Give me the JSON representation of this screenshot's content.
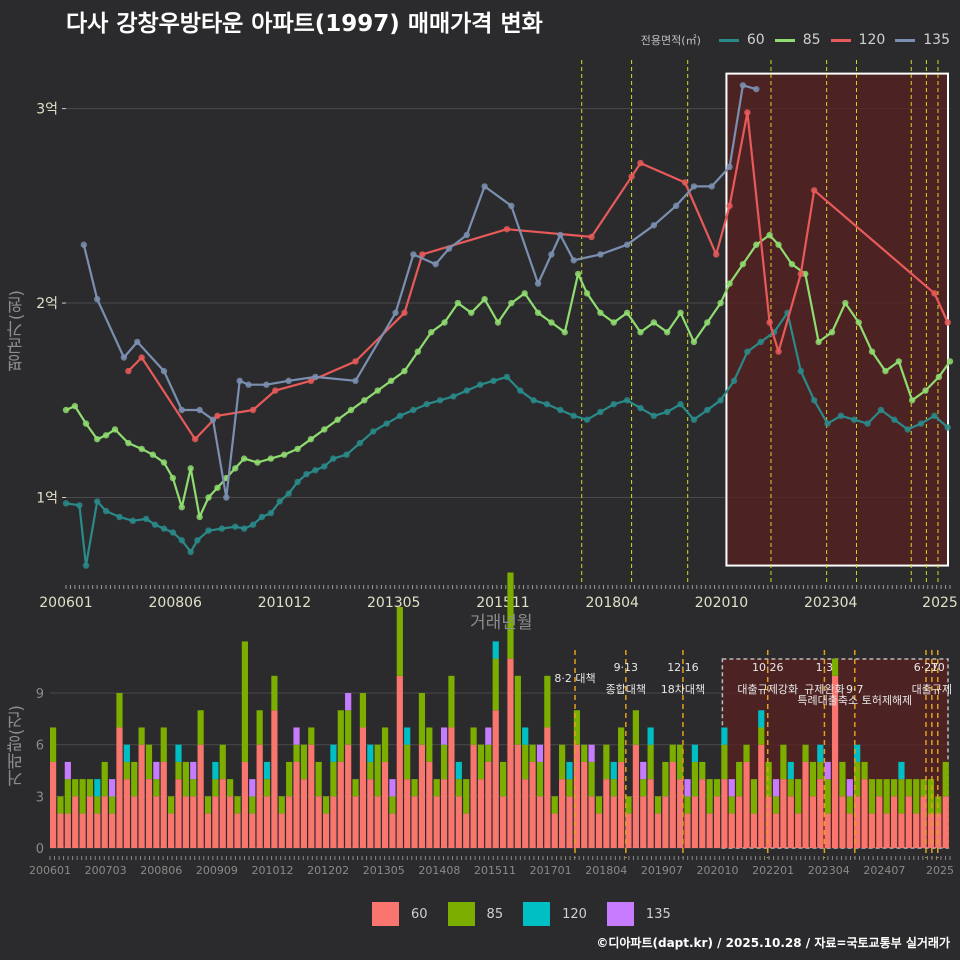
{
  "title": "다사 강창우방타운 아파트(1997) 매매가격 변화",
  "legend_title": "전용면적(㎡)",
  "footer": "©디아파트(dapt.kr) / 2025.10.28 / 자료=국토교통부 실거래가",
  "colors": {
    "s60": "#2a8a8a",
    "s85": "#8fdc70",
    "s120": "#e85a5a",
    "s135": "#7b8fb0",
    "b60": "#f8766d",
    "b85": "#7cae00",
    "b120": "#00bfc4",
    "b135": "#c77cff",
    "policy_line": "#d8d820",
    "highlight_fill": "#5a2020",
    "gridline": "#4a4a4a"
  },
  "chart_data": [
    {
      "type": "line",
      "title": "다사 강창우방타운 아파트(1997) 매매가격 변화",
      "xlabel": "거래년월",
      "ylabel": "평균가(원)",
      "x_tick_labels": [
        "200601",
        "200806",
        "201012",
        "201305",
        "201511",
        "201804",
        "202010",
        "202304",
        "2025"
      ],
      "y_ticks": [
        {
          "value": 1.0,
          "label": "1억"
        },
        {
          "value": 2.0,
          "label": "2억"
        },
        {
          "value": 3.0,
          "label": "3억"
        }
      ],
      "ylim": [
        0.55,
        3.25
      ],
      "x_range": [
        2006.0,
        2025.85
      ],
      "policy_dates": [
        2017.58,
        2018.7,
        2019.96,
        2021.83,
        2023.08,
        2023.75,
        2024.98,
        2025.32,
        2025.58
      ],
      "highlight_range": [
        2020.83,
        2025.85
      ],
      "highlight_ylim": [
        0.65,
        3.18
      ],
      "series": [
        {
          "name": "60",
          "color_key": "s60",
          "x": [
            2006.0,
            2006.3,
            2006.45,
            2006.7,
            2006.9,
            2007.2,
            2007.5,
            2007.8,
            2008.0,
            2008.2,
            2008.4,
            2008.6,
            2008.8,
            2008.95,
            2009.2,
            2009.5,
            2009.8,
            2010.0,
            2010.2,
            2010.4,
            2010.6,
            2010.8,
            2011.0,
            2011.2,
            2011.4,
            2011.6,
            2011.8,
            2012.0,
            2012.3,
            2012.6,
            2012.9,
            2013.2,
            2013.5,
            2013.8,
            2014.1,
            2014.4,
            2014.7,
            2015.0,
            2015.3,
            2015.6,
            2015.9,
            2016.2,
            2016.5,
            2016.8,
            2017.1,
            2017.4,
            2017.7,
            2018.0,
            2018.3,
            2018.6,
            2018.9,
            2019.2,
            2019.5,
            2019.8,
            2020.1,
            2020.4,
            2020.7,
            2021.0,
            2021.3,
            2021.6,
            2021.9,
            2022.2,
            2022.5,
            2022.8,
            2023.1,
            2023.4,
            2023.7,
            2024.0,
            2024.3,
            2024.6,
            2024.9,
            2025.2,
            2025.5,
            2025.8
          ],
          "y": [
            0.97,
            0.96,
            0.65,
            0.98,
            0.93,
            0.9,
            0.88,
            0.89,
            0.86,
            0.84,
            0.82,
            0.78,
            0.72,
            0.78,
            0.83,
            0.84,
            0.85,
            0.84,
            0.86,
            0.9,
            0.92,
            0.98,
            1.02,
            1.08,
            1.12,
            1.14,
            1.16,
            1.2,
            1.22,
            1.28,
            1.34,
            1.38,
            1.42,
            1.45,
            1.48,
            1.5,
            1.52,
            1.55,
            1.58,
            1.6,
            1.62,
            1.55,
            1.5,
            1.48,
            1.45,
            1.42,
            1.4,
            1.44,
            1.48,
            1.5,
            1.46,
            1.42,
            1.44,
            1.48,
            1.4,
            1.45,
            1.5,
            1.6,
            1.75,
            1.8,
            1.85,
            1.95,
            1.65,
            1.5,
            1.38,
            1.42,
            1.4,
            1.38,
            1.45,
            1.4,
            1.35,
            1.38,
            1.42,
            1.36
          ]
        },
        {
          "name": "85",
          "color_key": "s85",
          "x": [
            2006.0,
            2006.2,
            2006.45,
            2006.7,
            2006.9,
            2007.1,
            2007.4,
            2007.7,
            2007.95,
            2008.2,
            2008.4,
            2008.6,
            2008.8,
            2009.0,
            2009.2,
            2009.4,
            2009.6,
            2009.8,
            2010.0,
            2010.3,
            2010.6,
            2010.9,
            2011.2,
            2011.5,
            2011.8,
            2012.1,
            2012.4,
            2012.7,
            2013.0,
            2013.3,
            2013.6,
            2013.9,
            2014.2,
            2014.5,
            2014.8,
            2015.1,
            2015.4,
            2015.7,
            2016.0,
            2016.3,
            2016.6,
            2016.9,
            2017.2,
            2017.5,
            2017.7,
            2018.0,
            2018.3,
            2018.6,
            2018.9,
            2019.2,
            2019.5,
            2019.8,
            2020.1,
            2020.4,
            2020.7,
            2020.9,
            2021.2,
            2021.5,
            2021.8,
            2022.0,
            2022.3,
            2022.6,
            2022.9,
            2023.2,
            2023.5,
            2023.8,
            2024.1,
            2024.4,
            2024.7,
            2025.0,
            2025.3,
            2025.6,
            2025.85
          ],
          "y": [
            1.45,
            1.47,
            1.38,
            1.3,
            1.32,
            1.35,
            1.28,
            1.25,
            1.22,
            1.18,
            1.1,
            0.95,
            1.15,
            0.9,
            1.0,
            1.05,
            1.1,
            1.15,
            1.2,
            1.18,
            1.2,
            1.22,
            1.25,
            1.3,
            1.35,
            1.4,
            1.45,
            1.5,
            1.55,
            1.6,
            1.65,
            1.75,
            1.85,
            1.9,
            2.0,
            1.95,
            2.02,
            1.9,
            2.0,
            2.05,
            1.95,
            1.9,
            1.85,
            2.15,
            2.05,
            1.95,
            1.9,
            1.95,
            1.85,
            1.9,
            1.85,
            1.95,
            1.8,
            1.9,
            2.0,
            2.1,
            2.2,
            2.3,
            2.35,
            2.3,
            2.2,
            2.15,
            1.8,
            1.85,
            2.0,
            1.9,
            1.75,
            1.65,
            1.7,
            1.5,
            1.55,
            1.62,
            1.7
          ]
        },
        {
          "name": "120",
          "color_key": "s120",
          "x": [
            2007.4,
            2007.7,
            2008.9,
            2009.4,
            2010.2,
            2010.7,
            2011.5,
            2012.5,
            2013.6,
            2014.0,
            2015.9,
            2017.8,
            2018.7,
            2018.9,
            2019.9,
            2020.6,
            2020.9,
            2021.3,
            2021.8,
            2022.0,
            2022.5,
            2022.8,
            2025.5,
            2025.8
          ],
          "y": [
            1.65,
            1.72,
            1.3,
            1.42,
            1.45,
            1.55,
            1.6,
            1.7,
            1.95,
            2.25,
            2.38,
            2.34,
            2.65,
            2.72,
            2.62,
            2.25,
            2.5,
            2.98,
            1.9,
            1.75,
            2.15,
            2.58,
            2.05,
            1.9
          ]
        },
        {
          "name": "135",
          "color_key": "s135",
          "x": [
            2006.4,
            2006.7,
            2007.3,
            2007.6,
            2008.2,
            2008.6,
            2009.0,
            2009.3,
            2009.6,
            2009.9,
            2010.1,
            2010.5,
            2011.0,
            2011.6,
            2012.5,
            2013.4,
            2013.8,
            2014.3,
            2014.6,
            2015.0,
            2015.4,
            2016.0,
            2016.6,
            2016.9,
            2017.1,
            2017.4,
            2018.0,
            2018.6,
            2019.2,
            2019.7,
            2020.1,
            2020.5,
            2020.9,
            2021.2,
            2021.5
          ],
          "y": [
            2.3,
            2.02,
            1.72,
            1.8,
            1.65,
            1.45,
            1.45,
            1.4,
            1.0,
            1.6,
            1.58,
            1.58,
            1.6,
            1.62,
            1.6,
            1.95,
            2.25,
            2.2,
            2.28,
            2.35,
            2.6,
            2.5,
            2.1,
            2.25,
            2.35,
            2.22,
            2.25,
            2.3,
            2.4,
            2.5,
            2.6,
            2.6,
            2.7,
            3.12,
            3.1
          ]
        }
      ]
    },
    {
      "type": "bar",
      "ylabel": "거래량(건)",
      "x_tick_labels": [
        "200601",
        "200703",
        "200806",
        "200909",
        "201012",
        "201202",
        "201305",
        "201408",
        "201511",
        "201701",
        "201804",
        "201907",
        "202010",
        "202201",
        "202304",
        "202407",
        "2025"
      ],
      "y_ticks": [
        {
          "value": 0,
          "label": "0"
        },
        {
          "value": 3,
          "label": "3"
        },
        {
          "value": 6,
          "label": "6"
        },
        {
          "value": 9,
          "label": "9"
        }
      ],
      "ylim": [
        0,
        11.5
      ],
      "x_range": [
        2006.0,
        2025.85
      ],
      "highlight_range": [
        2020.83,
        2025.85
      ],
      "policies": [
        {
          "x": 2017.58,
          "label": "8·2 대책",
          "row": 1
        },
        {
          "x": 2018.7,
          "label": "9·13",
          "row": 0
        },
        {
          "x": 2018.7,
          "label": "종합대책",
          "row": 2
        },
        {
          "x": 2019.96,
          "label": "12·16",
          "row": 0
        },
        {
          "x": 2019.96,
          "label": "18차대책",
          "row": 2
        },
        {
          "x": 2021.83,
          "label": "10·26",
          "row": 0
        },
        {
          "x": 2021.83,
          "label": "대출규제강화",
          "row": 2
        },
        {
          "x": 2023.08,
          "label": "1·3",
          "row": 0
        },
        {
          "x": 2023.08,
          "label": "규제완화",
          "row": 2
        },
        {
          "x": 2023.75,
          "label": "9·7",
          "row": 2
        },
        {
          "x": 2023.75,
          "label": "특례대출축소 토허제해제",
          "row": 3
        },
        {
          "x": 2025.32,
          "label": "6·27",
          "row": 0
        },
        {
          "x": 2025.58,
          "label": "10",
          "row": 0
        },
        {
          "x": 2025.45,
          "label": "대출규제",
          "row": 2
        }
      ],
      "legend": [
        "60",
        "85",
        "120",
        "135"
      ],
      "series": [
        {
          "name": "60",
          "color_key": "b60",
          "values": [
            5,
            2,
            2,
            3,
            2,
            3,
            2,
            3,
            2,
            7,
            4,
            3,
            6,
            4,
            3,
            5,
            2,
            4,
            3,
            3,
            6,
            2,
            3,
            4,
            3,
            2,
            5,
            2,
            6,
            3,
            8,
            2,
            3,
            5,
            4,
            6,
            3,
            2,
            3,
            5,
            6,
            3,
            7,
            4,
            3,
            5,
            2,
            10,
            4,
            3,
            6,
            5,
            3,
            4,
            7,
            3,
            2,
            6,
            4,
            5,
            8,
            3,
            11,
            6,
            4,
            5,
            3,
            7,
            2,
            4,
            3,
            6,
            5,
            3,
            2,
            4,
            3,
            5,
            2,
            6,
            3,
            4,
            2,
            3,
            5,
            4,
            2,
            3,
            4,
            2,
            3,
            4,
            2,
            3,
            5,
            2,
            6,
            3,
            2,
            4,
            3,
            2,
            5,
            3,
            4,
            2,
            10,
            3,
            2,
            3,
            4,
            2,
            3,
            2,
            3,
            2,
            3,
            2,
            3,
            2,
            2,
            3
          ]
        },
        {
          "name": "85",
          "color_key": "b85",
          "values": [
            2,
            1,
            2,
            1,
            2,
            1,
            1,
            2,
            1,
            2,
            1,
            2,
            1,
            2,
            1,
            2,
            1,
            1,
            2,
            1,
            2,
            1,
            1,
            2,
            1,
            1,
            7,
            1,
            2,
            1,
            2,
            1,
            2,
            1,
            2,
            1,
            2,
            1,
            2,
            3,
            2,
            1,
            2,
            1,
            3,
            2,
            1,
            4,
            2,
            1,
            3,
            2,
            1,
            2,
            3,
            1,
            2,
            1,
            2,
            1,
            3,
            2,
            5,
            4,
            2,
            1,
            2,
            3,
            1,
            2,
            1,
            2,
            1,
            2,
            1,
            2,
            1,
            2,
            1,
            2,
            1,
            2,
            1,
            2,
            1,
            2,
            1,
            2,
            1,
            2,
            1,
            2,
            1,
            2,
            1,
            2,
            1,
            2,
            1,
            2,
            1,
            2,
            1,
            2,
            1,
            2,
            1,
            2,
            1,
            2,
            1,
            2,
            1,
            2,
            1,
            2,
            1,
            2,
            1,
            2,
            1,
            2
          ]
        },
        {
          "name": "120",
          "color_key": "b120",
          "values": [
            0,
            0,
            0,
            0,
            0,
            0,
            1,
            0,
            0,
            0,
            1,
            0,
            0,
            0,
            0,
            0,
            0,
            1,
            0,
            0,
            0,
            0,
            1,
            0,
            0,
            0,
            0,
            0,
            0,
            1,
            0,
            0,
            0,
            0,
            0,
            0,
            0,
            0,
            1,
            0,
            0,
            0,
            0,
            1,
            0,
            0,
            0,
            0,
            1,
            0,
            0,
            0,
            0,
            0,
            0,
            1,
            0,
            0,
            0,
            0,
            1,
            0,
            0,
            0,
            1,
            0,
            0,
            0,
            0,
            0,
            1,
            0,
            0,
            0,
            0,
            0,
            1,
            0,
            0,
            0,
            0,
            1,
            0,
            0,
            0,
            0,
            0,
            1,
            0,
            0,
            0,
            1,
            0,
            0,
            0,
            0,
            1,
            0,
            0,
            0,
            1,
            0,
            0,
            0,
            1,
            0,
            0,
            0,
            0,
            1,
            0,
            0,
            0,
            0,
            0,
            1,
            0,
            0,
            0,
            0,
            0,
            0
          ]
        },
        {
          "name": "135",
          "color_key": "b135",
          "values": [
            0,
            0,
            1,
            0,
            0,
            0,
            0,
            0,
            1,
            0,
            0,
            0,
            0,
            0,
            1,
            0,
            0,
            0,
            0,
            1,
            0,
            0,
            0,
            0,
            0,
            0,
            0,
            1,
            0,
            0,
            0,
            0,
            0,
            1,
            0,
            0,
            0,
            0,
            0,
            0,
            1,
            0,
            0,
            0,
            0,
            0,
            1,
            0,
            0,
            0,
            0,
            0,
            0,
            1,
            0,
            0,
            0,
            0,
            0,
            1,
            0,
            0,
            0,
            0,
            0,
            0,
            1,
            0,
            0,
            0,
            0,
            0,
            0,
            1,
            0,
            0,
            0,
            0,
            0,
            0,
            1,
            0,
            0,
            0,
            0,
            0,
            1,
            0,
            0,
            0,
            0,
            0,
            1,
            0,
            0,
            0,
            0,
            0,
            1,
            0,
            0,
            0,
            0,
            0,
            0,
            1,
            0,
            0,
            1,
            0,
            0,
            0,
            0,
            0,
            0,
            0,
            0,
            0,
            0,
            0,
            0,
            0
          ]
        }
      ]
    }
  ]
}
